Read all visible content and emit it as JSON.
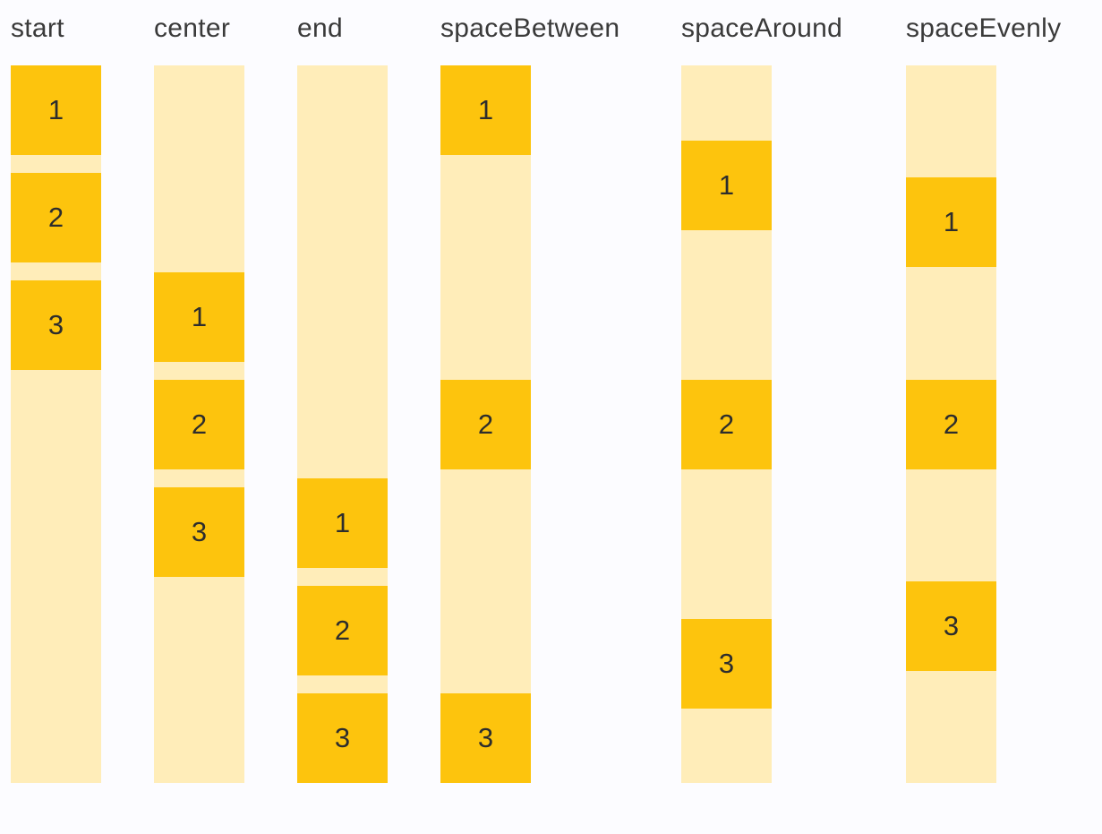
{
  "page": {
    "background": "#fcfcff",
    "description": "Column main-axis alignment demo"
  },
  "colors": {
    "box": "#fdc40d",
    "track": "#ffedb9",
    "label_text": "#3a3a3a",
    "digit_text": "#2d2d2d"
  },
  "columns": [
    {
      "label": "start",
      "justify": "flex-start",
      "gapped": true,
      "min_width": 101,
      "items": [
        "1",
        "2",
        "3"
      ]
    },
    {
      "label": "center",
      "justify": "center",
      "gapped": true,
      "min_width": 101,
      "items": [
        "1",
        "2",
        "3"
      ]
    },
    {
      "label": "end",
      "justify": "flex-end",
      "gapped": true,
      "min_width": 101,
      "items": [
        "1",
        "2",
        "3"
      ]
    },
    {
      "label": "spaceBetween",
      "justify": "space-between",
      "gapped": false,
      "min_width": 210,
      "items": [
        "1",
        "2",
        "3"
      ]
    },
    {
      "label": "spaceAround",
      "justify": "space-around",
      "gapped": false,
      "min_width": 192,
      "items": [
        "1",
        "2",
        "3"
      ]
    },
    {
      "label": "spaceEvenly",
      "justify": "space-evenly",
      "gapped": false,
      "min_width": 101,
      "items": [
        "1",
        "2",
        "3"
      ]
    }
  ]
}
